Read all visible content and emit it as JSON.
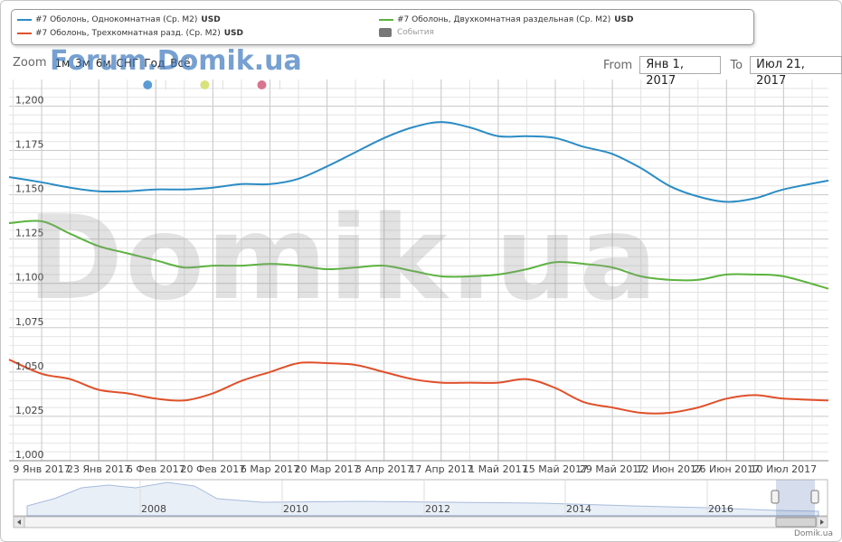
{
  "legend": {
    "s1": "#7 Оболонь, Однокомнатная (Ср. М2)",
    "s2": "#7 Оболонь, Двухкомнатная раздельная (Ср. М2)",
    "s3": "#7 Оболонь, Трехкомнатная разд. (Ср. М2)",
    "unit": "USD",
    "events": "События"
  },
  "toolbar": {
    "zoom_label": "Zoom",
    "zoom_buttons": [
      "1м",
      "3м",
      "6м",
      "СНГ",
      "Год",
      "Всё"
    ],
    "from_label": "From",
    "from_value": "Янв 1, 2017",
    "to_label": "To",
    "to_value": "Июл 21, 2017"
  },
  "watermark_small": "Forum.Domik.ua",
  "watermark_big": "Domik.ua",
  "credit": "Domik.ua",
  "colors": {
    "s1": "#2b8cc4",
    "s2": "#5bb33e",
    "s3": "#e0502a",
    "events": "#777777",
    "dot1": "#5b9bd5",
    "dot2": "#d7e27c",
    "dot3": "#d9738e"
  },
  "chart_data": {
    "type": "line",
    "xlabel": "",
    "ylabel": "",
    "ylim": [
      1000,
      1215
    ],
    "yticks": [
      "1,000",
      "1,025",
      "1,050",
      "1,075",
      "1,100",
      "1,125",
      "1,150",
      "1,175",
      "1,200"
    ],
    "x_ticks": [
      "9 Янв 2017",
      "23 Янв 2017",
      "6 Фев 2017",
      "20 Фев 2017",
      "6 Мар 2017",
      "20 Мар 2017",
      "3 Апр 2017",
      "17 Апр 2017",
      "1 Май 2017",
      "15 Май 2017",
      "29 Май 2017",
      "12 Июн 2017",
      "26 Июн 2017",
      "10 Июл 2017"
    ],
    "x_range": [
      "2017-01-01",
      "2017-07-21"
    ],
    "series": [
      {
        "name": "#7 Оболонь, Однокомнатная (Ср. М2)",
        "x": [
          "2017-01-01",
          "2017-01-09",
          "2017-01-16",
          "2017-01-23",
          "2017-01-30",
          "2017-02-06",
          "2017-02-13",
          "2017-02-20",
          "2017-02-27",
          "2017-03-06",
          "2017-03-13",
          "2017-03-20",
          "2017-03-27",
          "2017-04-03",
          "2017-04-10",
          "2017-04-17",
          "2017-04-24",
          "2017-05-01",
          "2017-05-08",
          "2017-05-15",
          "2017-05-22",
          "2017-05-29",
          "2017-06-05",
          "2017-06-12",
          "2017-06-19",
          "2017-06-26",
          "2017-07-03",
          "2017-07-10",
          "2017-07-21"
        ],
        "values": [
          1160,
          1157,
          1154,
          1152,
          1152,
          1153,
          1153,
          1154,
          1156,
          1156,
          1159,
          1166,
          1174,
          1182,
          1188,
          1191,
          1188,
          1183,
          1183,
          1182,
          1177,
          1173,
          1165,
          1155,
          1149,
          1146,
          1148,
          1153,
          1158
        ]
      },
      {
        "name": "#7 Оболонь, Двухкомнатная раздельная (Ср. М2)",
        "x": [
          "2017-01-01",
          "2017-01-09",
          "2017-01-16",
          "2017-01-23",
          "2017-01-30",
          "2017-02-06",
          "2017-02-13",
          "2017-02-20",
          "2017-02-27",
          "2017-03-06",
          "2017-03-13",
          "2017-03-20",
          "2017-03-27",
          "2017-04-03",
          "2017-04-10",
          "2017-04-17",
          "2017-04-24",
          "2017-05-01",
          "2017-05-08",
          "2017-05-15",
          "2017-05-22",
          "2017-05-29",
          "2017-06-05",
          "2017-06-12",
          "2017-06-19",
          "2017-06-26",
          "2017-07-03",
          "2017-07-10",
          "2017-07-21"
        ],
        "values": [
          1134,
          1135,
          1128,
          1121,
          1117,
          1113,
          1109,
          1110,
          1110,
          1111,
          1110,
          1108,
          1109,
          1110,
          1107,
          1104,
          1104,
          1105,
          1108,
          1112,
          1111,
          1109,
          1104,
          1102,
          1102,
          1105,
          1105,
          1104,
          1097
        ]
      },
      {
        "name": "#7 Оболонь, Трехкомнатная разд. (Ср. М2)",
        "x": [
          "2017-01-01",
          "2017-01-09",
          "2017-01-16",
          "2017-01-23",
          "2017-01-30",
          "2017-02-06",
          "2017-02-13",
          "2017-02-20",
          "2017-02-27",
          "2017-03-06",
          "2017-03-13",
          "2017-03-20",
          "2017-03-27",
          "2017-04-03",
          "2017-04-10",
          "2017-04-17",
          "2017-04-24",
          "2017-05-01",
          "2017-05-08",
          "2017-05-15",
          "2017-05-22",
          "2017-05-29",
          "2017-06-05",
          "2017-06-12",
          "2017-06-19",
          "2017-06-26",
          "2017-07-03",
          "2017-07-10",
          "2017-07-21"
        ],
        "values": [
          1057,
          1049,
          1046,
          1040,
          1038,
          1035,
          1034,
          1038,
          1045,
          1050,
          1055,
          1055,
          1054,
          1050,
          1046,
          1044,
          1044,
          1044,
          1046,
          1041,
          1033,
          1030,
          1027,
          1027,
          1030,
          1035,
          1037,
          1035,
          1034
        ]
      }
    ],
    "navigator": {
      "labels": [
        "2008",
        "2010",
        "2012",
        "2014",
        "2016"
      ]
    }
  }
}
